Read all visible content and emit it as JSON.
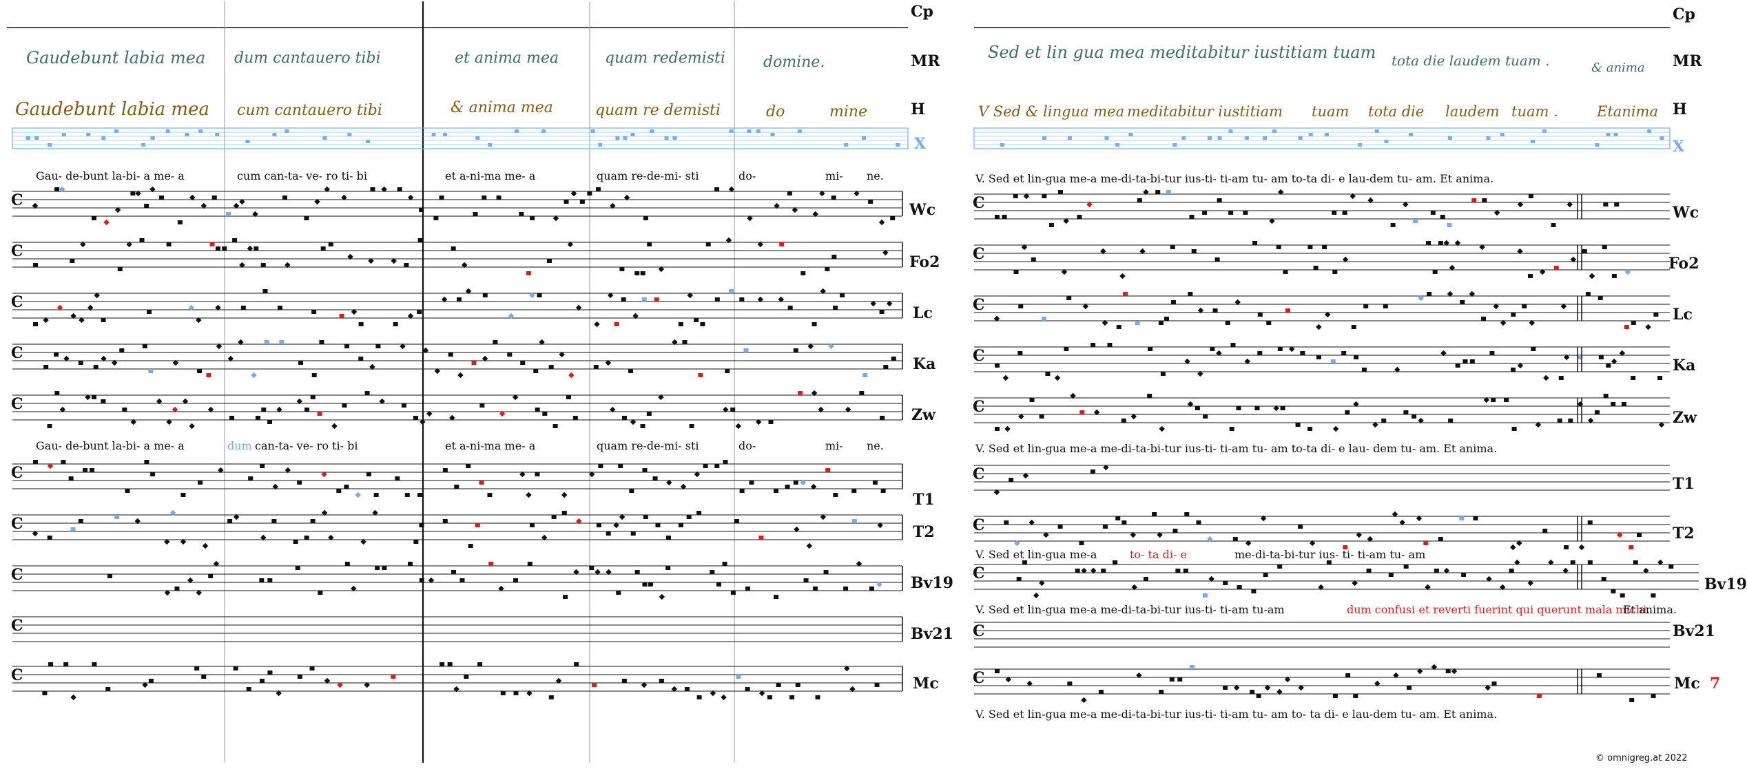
{
  "sigla": [
    "Cp",
    "MR",
    "H",
    "X",
    "Wc",
    "Fo2",
    "Lc",
    "Ka",
    "Zw",
    "T1",
    "T2",
    "Bv19",
    "Bv21",
    "Mc"
  ],
  "colors": {
    "black": "#111111",
    "red": "#e0191b",
    "blue": "#78aaf0",
    "green": "#4a9a4a",
    "mr": "#3d6e6a",
    "h": "#8a5a14"
  },
  "left": {
    "mr_text": [
      {
        "t": "Gaudebunt labia mea"
      },
      {
        "t": "dum cantauero tibi"
      },
      {
        "t": "et anima mea"
      },
      {
        "t": "quam redemisti"
      },
      {
        "t": "domine."
      }
    ],
    "h_text": [
      {
        "t": "Gaudebunt labia mea"
      },
      {
        "t": "cum cantauero tibi"
      },
      {
        "t": "& anima mea"
      },
      {
        "t": "quam re demisti"
      },
      {
        "t": "do"
      },
      {
        "t": "mine"
      }
    ],
    "lyrics1": [
      {
        "t": "Gau- de-bunt  la-bi- a     me-    a"
      },
      {
        "t": "cum can-ta- ve-     ro    ti-      bi"
      },
      {
        "t": "et  a-ni-ma  me-       a"
      },
      {
        "t": "quam re-de-mi- sti"
      },
      {
        "t": "do-"
      },
      {
        "t": "mi-"
      },
      {
        "t": "ne."
      }
    ],
    "lyrics2": [
      {
        "t": "Gau- de-bunt  la-bi- a     me-    a"
      },
      {
        "t": "dum"
      },
      {
        "t": "can-ta- ve-     ro    ti-      bi"
      },
      {
        "t": "et  a-ni-ma  me-       a"
      },
      {
        "t": "quam re-de-mi- sti"
      },
      {
        "t": "do-"
      },
      {
        "t": "mi-"
      },
      {
        "t": "ne."
      }
    ]
  },
  "right": {
    "mr_text": [
      {
        "t": "Sed et lin gua mea meditabitur iustitiam tuam"
      },
      {
        "t": "tota die laudem tuam ."
      },
      {
        "t": "& anima"
      }
    ],
    "h_text": [
      {
        "t": "V Sed & lingua mea"
      },
      {
        "t": "meditabitur iustitiam"
      },
      {
        "t": "tuam"
      },
      {
        "t": "tota die"
      },
      {
        "t": "laudem"
      },
      {
        "t": "tuam ."
      },
      {
        "t": "Etanima"
      }
    ],
    "lyrics_a": "V. Sed et   lin-gua   me-a         me-di-ta-bi-tur    ius-ti- ti-am     tu-    am        to-ta  di- e    lau-dem  tu-      am.     Et anima.",
    "lyrics_t": "V. Sed et  lin-gua   me-a          me-di-ta-bi-tur     ius-ti- ti-am     tu-     am        to-ta   di- e     lau- dem  tu-      am.     Et anima.",
    "lyrics_bv19_a": "V. Sed et lin-gua  me-a",
    "lyrics_bv19_b": "to- ta  di-    e",
    "lyrics_bv19_c": "me-di-ta-bi-tur  ius- ti-   ti-am tu- am",
    "lyrics_bv21_a": "V. Sed et lin-gua  me-a         me-di-ta-bi-tur    ius-ti- ti-am    tu-am",
    "lyrics_bv21_b": "dum confusi et reverti fuerint qui querunt mala michi.",
    "lyrics_bv21_c": "Et anima.",
    "lyrics_mc": "V. Sed     et     lin-gua me-a   me-di-ta-bi-tur  ius-ti- ti-am tu-    am      to-     ta  di- e      lau-dem    tu-      am.     Et anima."
  },
  "footer": "©  omnigreg.at    2022",
  "page_number": "7"
}
